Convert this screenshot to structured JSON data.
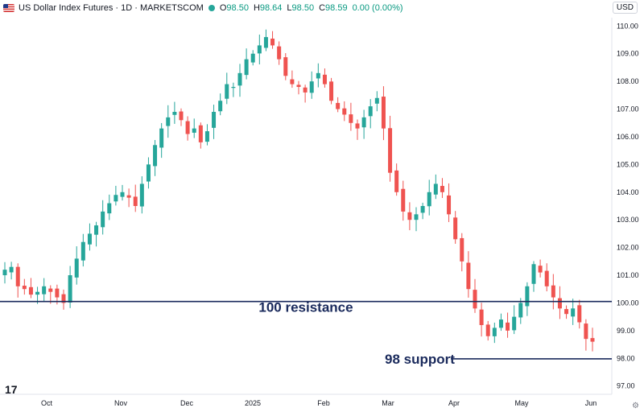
{
  "header": {
    "title": "US Dollar Index Futures · 1D · MARKETSCOM",
    "open_label": "O",
    "open": "98.50",
    "high_label": "H",
    "high": "98.64",
    "low_label": "L",
    "low": "98.50",
    "close_label": "C",
    "close": "98.59",
    "change": "0.00 (0.00%)",
    "currency": "USD"
  },
  "colors": {
    "up": "#26a69a",
    "down": "#ef5350",
    "line": "#1a2a5c"
  },
  "chart_data": {
    "type": "candlestick",
    "x_labels": [
      "Oct",
      "Nov",
      "Dec",
      "2025",
      "Feb",
      "Mar",
      "Apr",
      "May",
      "Jun"
    ],
    "y_ticks": [
      "97.00",
      "98.00",
      "99.00",
      "100.00",
      "101.00",
      "102.00",
      "103.00",
      "104.00",
      "105.00",
      "106.00",
      "107.00",
      "108.00",
      "109.00",
      "110.00"
    ],
    "ylim": [
      96.7,
      110.3
    ],
    "close_path": [
      101.2,
      101.3,
      100.6,
      100.5,
      100.3,
      100.4,
      100.6,
      100.4,
      100.2,
      100.0,
      101.0,
      101.6,
      102.2,
      102.5,
      102.8,
      103.3,
      103.6,
      103.9,
      104.0,
      103.8,
      103.5,
      104.3,
      105.0,
      105.7,
      106.3,
      106.7,
      106.9,
      106.6,
      106.1,
      106.3,
      105.8,
      106.2,
      106.9,
      107.3,
      107.9,
      107.8,
      108.3,
      108.8,
      109.0,
      109.3,
      109.6,
      109.3,
      108.8,
      108.2,
      107.9,
      107.8,
      107.6,
      108.0,
      108.3,
      107.9,
      107.3,
      107.0,
      106.8,
      106.5,
      106.3,
      106.7,
      107.1,
      107.4,
      106.3,
      104.7,
      104.0,
      103.3,
      103.0,
      103.2,
      103.5,
      104.0,
      104.3,
      104.0,
      103.2,
      102.3,
      101.5,
      100.5,
      99.8,
      99.2,
      98.8,
      99.1,
      99.4,
      99.0,
      99.5,
      100.0,
      100.6,
      101.4,
      101.1,
      100.6,
      100.2,
      99.8,
      99.6,
      99.8,
      99.3,
      98.7,
      98.6
    ],
    "annotations": [
      {
        "label": "100 resistance",
        "value": 100.05
      },
      {
        "label": "98 support",
        "value": 97.98
      }
    ]
  },
  "logo_text": "17",
  "settings_icon": "gear-icon"
}
